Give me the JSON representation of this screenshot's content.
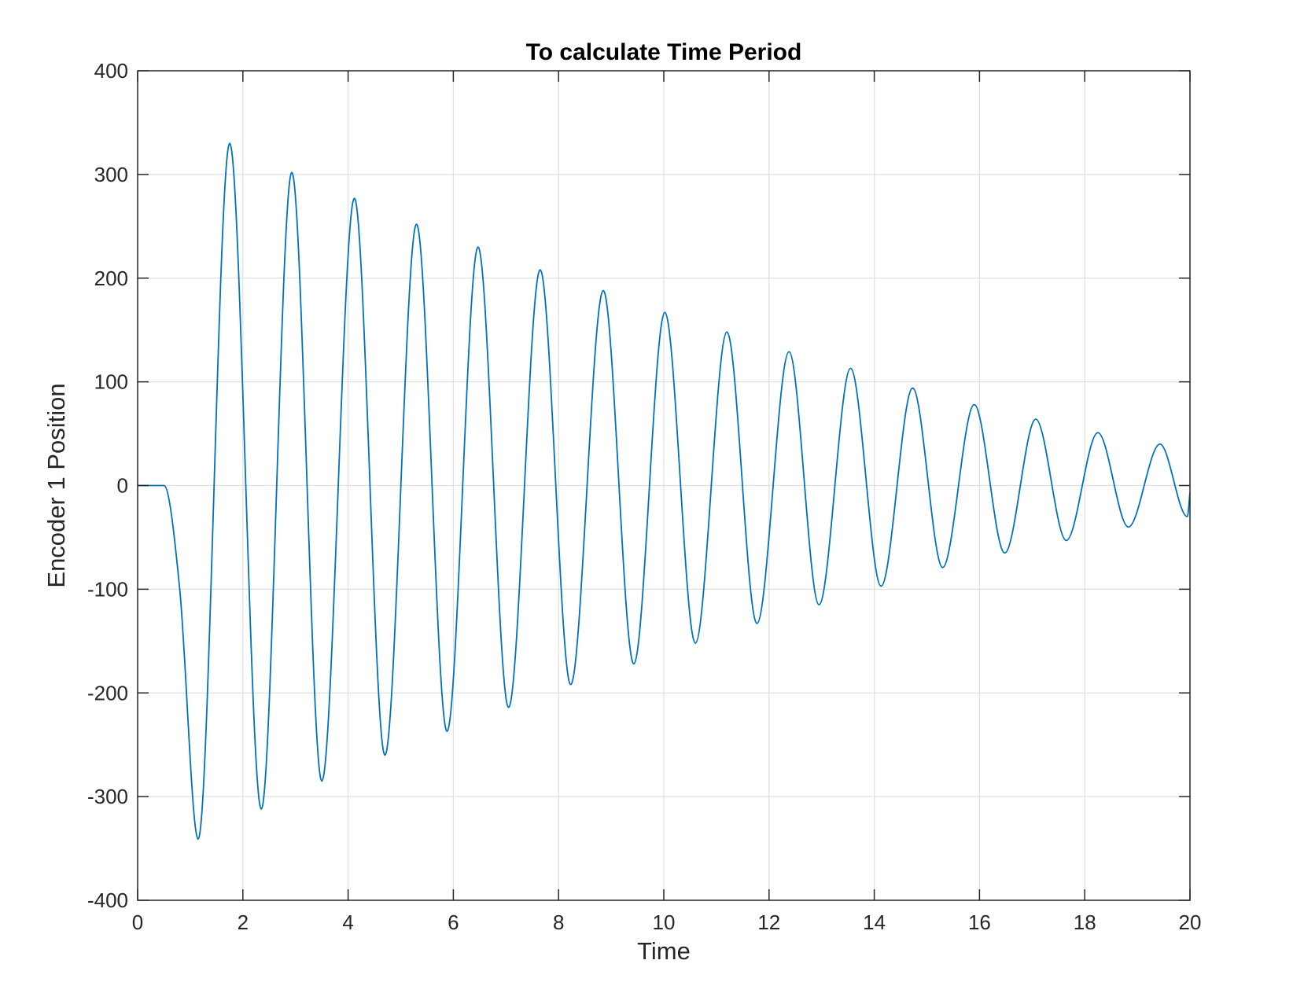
{
  "chart_data": {
    "type": "line",
    "title": "To calculate Time Period",
    "xlabel": "Time",
    "ylabel": "Encoder 1 Position",
    "xlim": [
      0,
      20
    ],
    "ylim": [
      -400,
      400
    ],
    "xticks": [
      "0",
      "2",
      "4",
      "6",
      "8",
      "10",
      "12",
      "14",
      "16",
      "18",
      "20"
    ],
    "yticks": [
      "400",
      "300",
      "200",
      "100",
      "0",
      "-100",
      "-200",
      "-300",
      "-400"
    ],
    "grid": true,
    "legend": "none",
    "line_color": "#0072BD",
    "series": [
      {
        "x": [
          0,
          0.5,
          0.8,
          1.15,
          1.75,
          2.35,
          2.93,
          3.5,
          4.12,
          4.7,
          5.3,
          5.88,
          6.47,
          7.05,
          7.65,
          8.23,
          8.85,
          9.43,
          10.02,
          10.6,
          11.2,
          11.77,
          12.38,
          12.95,
          13.55,
          14.13,
          14.73,
          15.3,
          15.9,
          16.48,
          17.07,
          17.65,
          18.25,
          18.83,
          19.43,
          19.95,
          20
        ],
        "y": [
          0,
          0,
          -100,
          -341,
          330,
          -312,
          302,
          -285,
          277,
          -260,
          252,
          -237,
          230,
          -214,
          208,
          -192,
          188,
          -172,
          167,
          -152,
          148,
          -133,
          129,
          -115,
          113,
          -97,
          94,
          -79,
          78,
          -65,
          64,
          -53,
          51,
          -40,
          40,
          -30,
          -7
        ]
      }
    ]
  }
}
